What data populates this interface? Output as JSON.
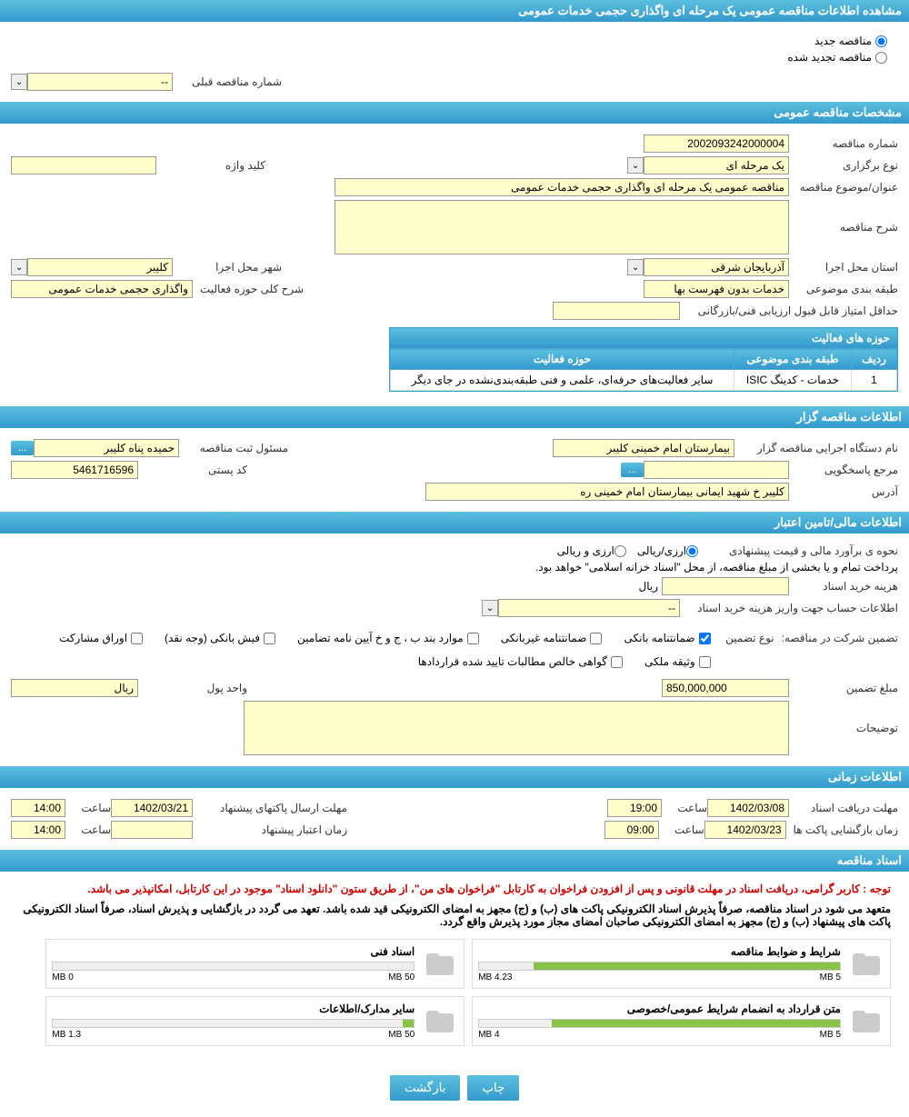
{
  "page_title": "مشاهده اطلاعات مناقصه عمومی یک مرحله ای واگذاری حجمی خدمات عمومی",
  "tender_type": {
    "options": [
      "مناقصه جدید",
      "مناقصه تجدید شده"
    ],
    "selected": "مناقصه جدید"
  },
  "prev_tender": {
    "label": "شماره مناقصه قبلی",
    "value": "--"
  },
  "sections": {
    "general": "مشخصات مناقصه عمومی",
    "holder": "اطلاعات مناقصه گزار",
    "financial": "اطلاعات مالی/تامین اعتبار",
    "timing": "اطلاعات زمانی",
    "documents": "اسناد مناقصه"
  },
  "general": {
    "tender_number_label": "شماره مناقصه",
    "tender_number": "2002093242000004",
    "holding_type_label": "نوع برگزاری",
    "holding_type": "یک مرحله ای",
    "keyword_label": "کلید واژه",
    "keyword": "",
    "subject_label": "عنوان/موضوع مناقصه",
    "subject": "مناقصه عمومی یک مرحله ای واگذاری حجمی خدمات عمومی",
    "description_label": "شرح مناقصه",
    "description": "",
    "province_label": "استان محل اجرا",
    "province": "آذربایجان شرقی",
    "city_label": "شهر محل اجرا",
    "city": "کلیبر",
    "classification_label": "طبقه بندی موضوعی",
    "classification": "خدمات بدون فهرست بها",
    "scope_label": "شرح کلی حوزه فعالیت",
    "scope": "واگذاری حجمی خدمات عمومی",
    "min_score_label": "حداقل امتیاز قابل قبول ارزیابی فنی/بازرگانی",
    "min_score": ""
  },
  "activity_table": {
    "title": "حوزه های فعالیت",
    "columns": [
      "ردیف",
      "طبقه بندی موضوعی",
      "حوزه فعالیت"
    ],
    "rows": [
      [
        "1",
        "خدمات - کدینگ ISIC",
        "سایر فعالیت‌های حرفه‌ای، علمی و فنی طبقه‌بندی‌نشده در جای دیگر"
      ]
    ]
  },
  "holder": {
    "org_label": "نام دستگاه اجرایی مناقصه گزار",
    "org": "بیمارستان امام خمینی کلیبر",
    "registrar_label": "مسئول ثبت مناقصه",
    "registrar": "حمیده پناه کلیبر",
    "inquiry_label": "مرجع پاسخگویی",
    "inquiry": "",
    "postal_label": "کد پستی",
    "postal": "5461716596",
    "address_label": "آدرس",
    "address": "کلیبر خ شهید ایمانی بیمارستان امام خمینی ره"
  },
  "financial": {
    "estimate_label": "نحوه ی برآورد مالی و قیمت پیشنهادی",
    "estimate_options": [
      "ارزی/ریالی",
      "ارزی و ریالی"
    ],
    "payment_notice": "پرداخت تمام و یا بخشی از مبلغ مناقصه، از محل \"اسناد خزانه اسلامی\" خواهد بود.",
    "purchase_cost_label": "هزینه خرید اسناد",
    "purchase_cost": "",
    "rial_label": "ریال",
    "account_label": "اطلاعات حساب جهت واریز هزینه خرید اسناد",
    "account": "--",
    "guarantee_label": "تضمین شرکت در مناقصه:",
    "guarantee_type_label": "نوع تضمین",
    "guarantee_types": [
      "ضمانتنامه بانکی",
      "ضمانتنامه غیربانکی",
      "موارد بند ب ، ج و خ آیین نامه تضامین",
      "فیش بانکی (وجه نقد)",
      "اوراق مشارکت",
      "وثیقه ملکی",
      "گواهی خالص مطالبات تایید شده قراردادها"
    ],
    "guarantee_checked": [
      true,
      false,
      false,
      false,
      false,
      false,
      false
    ],
    "amount_label": "مبلغ تضمین",
    "amount": "850,000,000",
    "currency_label": "واحد پول",
    "currency": "ریال",
    "explanation_label": "توضیحات",
    "explanation": ""
  },
  "timing": {
    "receive_deadline_label": "مهلت دریافت اسناد",
    "receive_deadline_date": "1402/03/08",
    "receive_deadline_time": "19:00",
    "send_deadline_label": "مهلت ارسال پاکتهای پیشنهاد",
    "send_deadline_date": "1402/03/21",
    "send_deadline_time": "14:00",
    "opening_label": "زمان بازگشایی پاکت ها",
    "opening_date": "1402/03/23",
    "opening_time": "09:00",
    "validity_label": "زمان اعتبار پیشنهاد",
    "validity_date": "",
    "validity_time": "14:00",
    "time_label": "ساعت"
  },
  "documents": {
    "notice_red": "توجه : کاربر گرامی، دریافت اسناد در مهلت قانونی و پس از افزودن فراخوان به کارتابل \"فراخوان های من\"، از طریق ستون \"دانلود اسناد\" موجود در این کارتابل، امکانپذیر می باشد.",
    "notice_bold": "متعهد می شود در اسناد مناقصه، صرفاً پذیرش اسناد الکترونیکی پاکت های (ب) و (ج) مجهز به امضای الکترونیکی قید شده باشد. تعهد می گردد در بازگشایی و پذیرش اسناد، صرفاً اسناد الکترونیکی پاکت های پیشنهاد (ب) و (ج) مجهز به امضای الکترونیکی صاحبان امضای مجاز مورد پذیرش واقع گردد.",
    "files": [
      {
        "title": "شرایط و ضوابط مناقصه",
        "size": "4.23 MB",
        "max": "5 MB",
        "fill_pct": 85
      },
      {
        "title": "اسناد فنی",
        "size": "0 MB",
        "max": "50 MB",
        "fill_pct": 0
      },
      {
        "title": "متن قرارداد به انضمام شرایط عمومی/خصوصی",
        "size": "",
        "max": "5 MB",
        "fill_pct": 80,
        "alt_size": "4 MB"
      },
      {
        "title": "سایر مدارک/اطلاعات",
        "size": "1.3 MB",
        "max": "50 MB",
        "fill_pct": 3
      }
    ]
  },
  "buttons": {
    "print": "چاپ",
    "back": "بازگشت",
    "more": "..."
  },
  "colors": {
    "header_bg": "#3399cc",
    "field_bg": "#ffffcc",
    "progress_fill": "#8bc34a",
    "notice_red": "#cc0000"
  }
}
